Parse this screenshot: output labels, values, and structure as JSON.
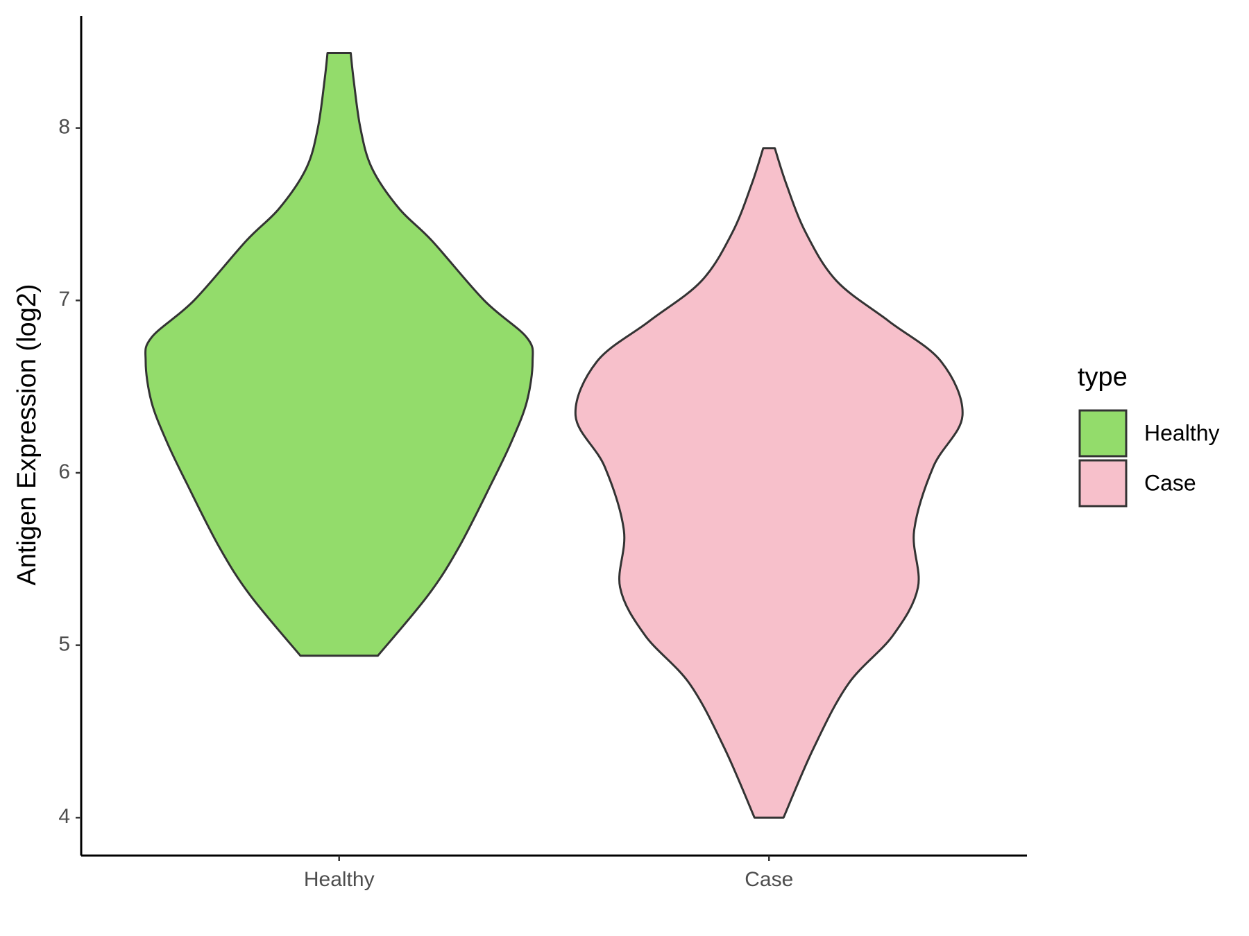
{
  "chart_data": {
    "type": "violin",
    "y_label": "Antigen Expression (log2)",
    "categories": [
      "Healthy",
      "Case"
    ],
    "legend_title": "type",
    "legend_position": "right",
    "series": [
      {
        "name": "Healthy",
        "color": "#93dc6b",
        "y": [
          8.435,
          8.28,
          8.0,
          7.766,
          7.533,
          7.346,
          7.0,
          6.785,
          6.645,
          6.411,
          6.178,
          5.944,
          5.57,
          5.29,
          4.939
        ],
        "density": [
          0.06,
          0.075,
          0.11,
          0.17,
          0.31,
          0.48,
          0.75,
          0.97,
          1,
          0.97,
          0.89,
          0.79,
          0.62,
          0.46,
          0.2
        ]
      },
      {
        "name": "Case",
        "color": "#f7c0cb",
        "y": [
          7.883,
          7.673,
          7.393,
          7.112,
          6.879,
          6.645,
          6.332,
          6.037,
          5.664,
          5.336,
          5.056,
          4.776,
          4.402,
          4.0
        ],
        "density": [
          0.03,
          0.09,
          0.19,
          0.35,
          0.62,
          0.89,
          1,
          0.85,
          0.75,
          0.77,
          0.64,
          0.41,
          0.23,
          0.075
        ]
      }
    ],
    "ylim": [
      3.78,
      8.65
    ],
    "yticks": [
      4,
      5,
      6,
      7,
      8
    ],
    "grid": false
  }
}
